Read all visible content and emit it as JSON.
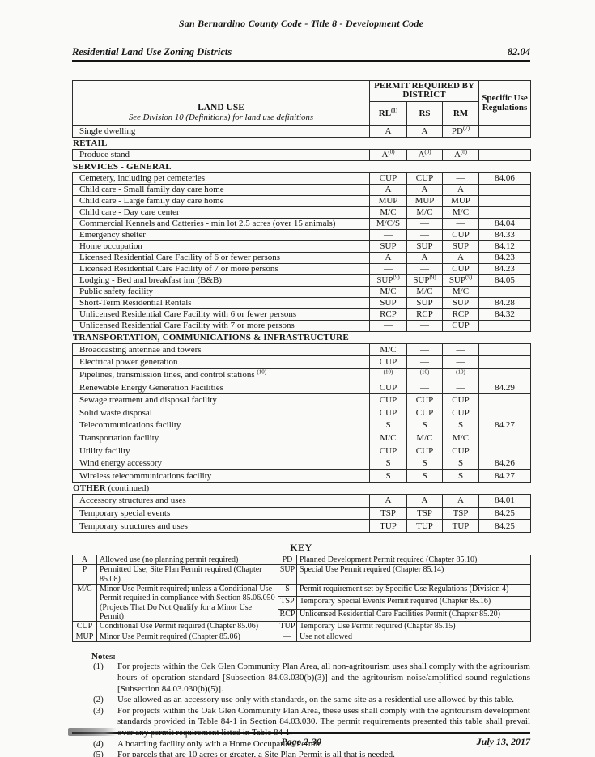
{
  "page": {
    "header_title": "San Bernardino County Code - Title 8 - Development Code",
    "section_left": "Residential Land Use Zoning Districts",
    "section_right": "82.04",
    "footer_center": "Page 2-30",
    "footer_right": "July 13, 2017"
  },
  "land_use_table": {
    "header": {
      "land_use_title": "LAND USE",
      "land_use_subtitle": "See Division 10 (Definitions) for land use definitions",
      "permit_group": "PERMIT REQUIRED BY DISTRICT",
      "district_columns": [
        "RL^(1)",
        "RS",
        "RM"
      ],
      "specific_use": "Specific Use Regulations"
    },
    "groups": [
      {
        "section": null,
        "rows": [
          [
            "Single dwelling",
            "A",
            "A",
            "PD^(7)",
            ""
          ]
        ]
      },
      {
        "section": {
          "bold": "RETAIL",
          "rest": ""
        },
        "rows": [
          [
            "Produce stand",
            "A^(8)",
            "A^(8)",
            "A^(8)",
            ""
          ]
        ]
      },
      {
        "section": {
          "bold": "SERVICES - GENERAL",
          "rest": ""
        },
        "rows": [
          [
            "Cemetery, including pet cemeteries",
            "CUP",
            "CUP",
            "—",
            "84.06"
          ],
          [
            "Child care - Small family day care home",
            "A",
            "A",
            "A",
            ""
          ],
          [
            "Child care - Large family day care home",
            "MUP",
            "MUP",
            "MUP",
            ""
          ],
          [
            "Child care - Day care center",
            "M/C",
            "M/C",
            "M/C",
            ""
          ],
          [
            "Commercial Kennels and Catteries - min lot 2.5 acres (over 15 animals)",
            "M/C/S",
            "—",
            "—",
            "84.04"
          ],
          [
            "Emergency shelter",
            "—",
            "—",
            "CUP",
            "84.33"
          ],
          [
            "Home occupation",
            "SUP",
            "SUP",
            "SUP",
            "84.12"
          ],
          [
            "Licensed Residential Care Facility of 6 or fewer persons",
            "A",
            "A",
            "A",
            "84.23"
          ],
          [
            "Licensed Residential Care Facility of 7 or more persons",
            "—",
            "—",
            "CUP",
            "84.23"
          ],
          [
            "Lodging - Bed and breakfast inn (B&B)",
            "SUP^(9)",
            "SUP^(9)",
            "SUP^(9)",
            "84.05"
          ],
          [
            "Public safety facility",
            "M/C",
            "M/C",
            "M/C",
            ""
          ],
          [
            "Short-Term Residential Rentals",
            "SUP",
            "SUP",
            "SUP",
            "84.28"
          ],
          [
            "Unlicensed Residential Care Facility with 6 or fewer persons",
            "RCP",
            "RCP",
            "RCP",
            "84.32"
          ],
          [
            "Unlicensed Residential Care Facility with 7 or more persons",
            "—",
            "—",
            "CUP",
            ""
          ]
        ]
      },
      {
        "section": {
          "bold": "TRANSPORTATION, COMMUNICATIONS & INFRASTRUCTURE",
          "rest": ""
        },
        "rows": [
          [
            "Broadcasting antennae and towers",
            "M/C",
            "—",
            "—",
            ""
          ],
          [
            "Electrical power generation",
            "CUP",
            "—",
            "—",
            ""
          ],
          [
            "Pipelines, transmission lines, and control stations ^(10)",
            "^(10)",
            "^(10)",
            "^(10)",
            ""
          ],
          [
            "Renewable Energy Generation Facilities",
            "CUP",
            "—",
            "—",
            "84.29"
          ],
          [
            "Sewage treatment and disposal facility",
            "CUP",
            "CUP",
            "CUP",
            ""
          ],
          [
            "Solid waste disposal",
            "CUP",
            "CUP",
            "CUP",
            ""
          ],
          [
            "Telecommunications facility",
            "S",
            "S",
            "S",
            "84.27"
          ],
          [
            "Transportation facility",
            "M/C",
            "M/C",
            "M/C",
            ""
          ],
          [
            "Utility facility",
            "CUP",
            "CUP",
            "CUP",
            ""
          ],
          [
            "Wind energy accessory",
            "S",
            "S",
            "S",
            "84.26"
          ],
          [
            "Wireless telecommunications facility",
            "S",
            "S",
            "S",
            "84.27"
          ]
        ]
      },
      {
        "section": {
          "bold": "OTHER",
          "rest": " (continued)"
        },
        "rows": [
          [
            "Accessory structures and uses",
            "A",
            "A",
            "A",
            "84.01"
          ],
          [
            "Temporary special events",
            "TSP",
            "TSP",
            "TSP",
            "84.25"
          ],
          [
            "Temporary structures and uses",
            "TUP",
            "TUP",
            "TUP",
            "84.25"
          ]
        ]
      }
    ]
  },
  "key": {
    "title": "KEY",
    "left": [
      {
        "abbr": "A",
        "desc": "Allowed use (no planning permit required)",
        "span": 1
      },
      {
        "abbr": "P",
        "desc": "Permitted Use; Site Plan Permit required (Chapter 85.08)",
        "span": 1
      },
      {
        "abbr": "M/C",
        "desc": "Minor Use Permit required; unless a Conditional Use Permit required in compliance with Section 85.06.050 (Projects That Do Not Qualify for a Minor Use Permit)",
        "span": 3
      },
      {
        "abbr": "CUP",
        "desc": "Conditional Use Permit required (Chapter 85.06)",
        "span": 1
      },
      {
        "abbr": "MUP",
        "desc": "Minor Use Permit required (Chapter 85.06)",
        "span": 1
      }
    ],
    "right": [
      {
        "abbr": "PD",
        "desc": "Planned Development Permit required (Chapter 85.10)"
      },
      {
        "abbr": "SUP",
        "desc": "Special Use Permit required (Chapter 85.14)"
      },
      {
        "abbr": "S",
        "desc": "Permit requirement set by Specific Use Regulations (Division 4)"
      },
      {
        "abbr": "TSP",
        "desc": "Temporary Special Events Permit required (Chapter 85.16)"
      },
      {
        "abbr": "RCP",
        "desc": "Unlicensed Residential Care Facilities Permit (Chapter 85.20)"
      },
      {
        "abbr": "TUP",
        "desc": "Temporary Use Permit required (Chapter 85.15)"
      },
      {
        "abbr": "—",
        "desc": "Use not allowed"
      }
    ]
  },
  "notes": {
    "label": "Notes:",
    "items": [
      {
        "num": "(1)",
        "text": "For projects within the Oak Glen Community Plan Area, all non-agritourism uses shall comply with the agritourism hours of operation standard [Subsection 84.03.030(b)(3)] and the agritourism noise/amplified sound regulations [Subsection 84.03.030(b)(5)]."
      },
      {
        "num": "(2)",
        "text": "Use allowed as an accessory use only with standards, on the same site as a residential use allowed by this table."
      },
      {
        "num": "(3)",
        "text": "For projects within the Oak Glen Community Plan Area, these uses shall comply with the agritourism development standards provided in Table 84-1 in Section 84.03.030. The permit requirements presented this table shall prevail over any permit requirement listed in Table 84-1."
      },
      {
        "num": "(4)",
        "text": "A boarding facility only with a Home Occupation Permit."
      },
      {
        "num": "(5)",
        "text": "For parcels that are 10 acres or greater, a Site Plan Permit is all that is needed."
      }
    ]
  }
}
